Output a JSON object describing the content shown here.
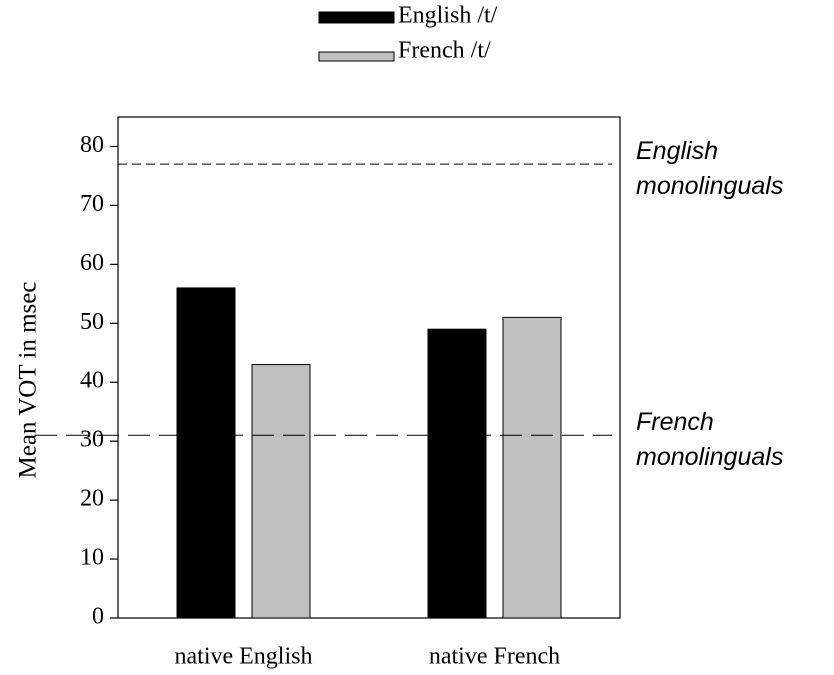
{
  "chart_data": {
    "type": "bar",
    "y_label": "Mean VOT in msec",
    "categories": [
      "native English",
      "native French"
    ],
    "series": [
      {
        "name": "English /t/",
        "color": "#000000",
        "values": [
          56,
          49
        ]
      },
      {
        "name": "French /t/",
        "color": "#c0c0c0",
        "values": [
          43,
          51
        ]
      }
    ],
    "reference_lines": [
      {
        "value": 77,
        "label": [
          "English",
          "monolinguals"
        ]
      },
      {
        "value": 31,
        "label": [
          "French",
          "monolinguals"
        ]
      }
    ],
    "ylim": [
      0,
      85
    ],
    "yticks": [
      0,
      10,
      20,
      30,
      40,
      50,
      60,
      70,
      80
    ]
  }
}
